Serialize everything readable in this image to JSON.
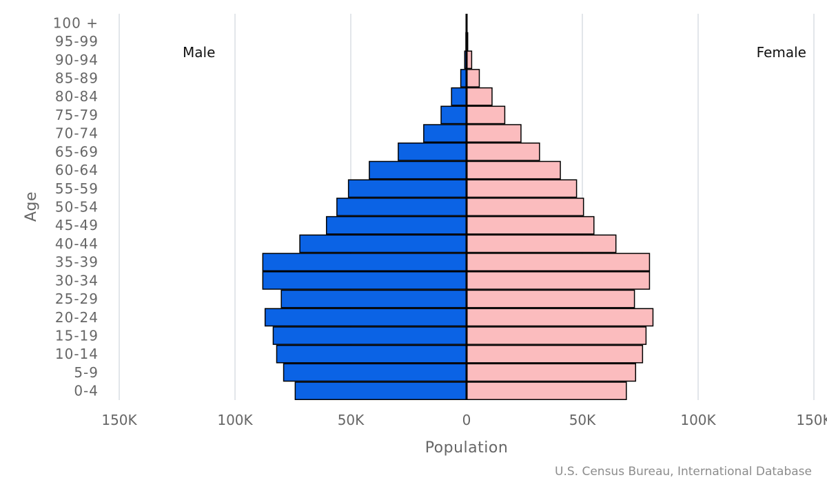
{
  "chart_data": {
    "type": "bar",
    "orientation": "horizontal",
    "title": "",
    "xlabel": "Population",
    "ylabel": "Age",
    "xlim": [
      -150000,
      150000
    ],
    "x_ticks": [
      {
        "value": -150000,
        "label": "150K"
      },
      {
        "value": -100000,
        "label": "100K"
      },
      {
        "value": -50000,
        "label": "50K"
      },
      {
        "value": 0,
        "label": "0"
      },
      {
        "value": 50000,
        "label": "50K"
      },
      {
        "value": 100000,
        "label": "100K"
      },
      {
        "value": 150000,
        "label": "150K"
      }
    ],
    "categories": [
      "0-4",
      "5-9",
      "10-14",
      "15-19",
      "20-24",
      "25-29",
      "30-34",
      "35-39",
      "40-44",
      "45-49",
      "50-54",
      "55-59",
      "60-64",
      "65-69",
      "70-74",
      "75-79",
      "80-84",
      "85-89",
      "90-94",
      "95-99",
      "100 +"
    ],
    "series": [
      {
        "name": "Male",
        "color": "#0b63e5",
        "values": [
          74000,
          79000,
          82000,
          83500,
          87000,
          80000,
          88000,
          88000,
          72000,
          60500,
          56000,
          51000,
          42000,
          29500,
          18500,
          11000,
          6500,
          2500,
          800,
          300,
          100
        ]
      },
      {
        "name": "Female",
        "color": "#fbbcbe",
        "values": [
          69000,
          73000,
          76000,
          77500,
          80500,
          72500,
          79000,
          79000,
          64500,
          55000,
          50500,
          47500,
          40500,
          31500,
          23500,
          16500,
          11000,
          5500,
          2200,
          500,
          150
        ]
      }
    ],
    "legend_labels": {
      "left": "Male",
      "right": "Female"
    },
    "grid": true
  },
  "source_text": "U.S. Census Bureau, International Database"
}
